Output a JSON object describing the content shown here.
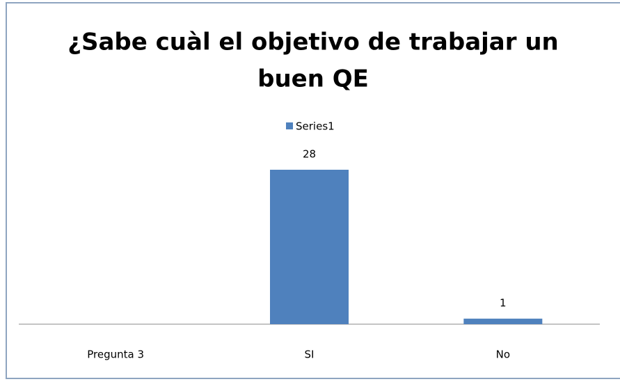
{
  "chart_data": {
    "type": "bar",
    "title_lines": [
      "¿Sabe cuàl el objetivo de trabajar un",
      "buen QE"
    ],
    "categories": [
      "Pregunta 3",
      "SI",
      "No"
    ],
    "series": [
      {
        "name": "Series1",
        "color": "#4f81bd",
        "values": [
          null,
          28,
          1
        ]
      }
    ],
    "legend": "top"
  }
}
